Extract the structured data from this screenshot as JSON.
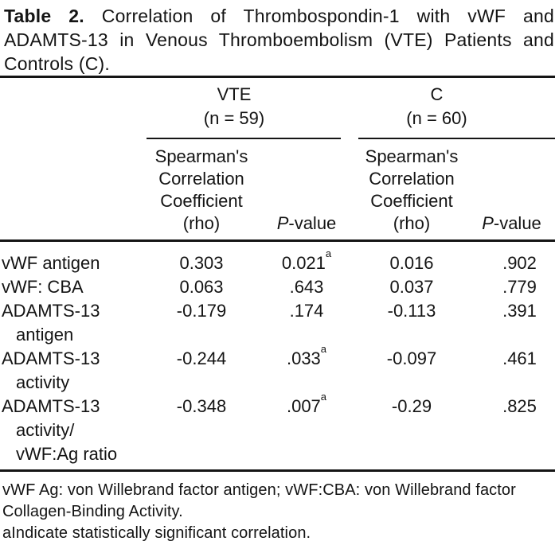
{
  "caption": {
    "label_bold": "Table 2.",
    "line1_rest": "Correlation of Thrombospondin-1 with vWF and",
    "line2": "ADAMTS-13 in Venous Thromboembolism (VTE) Patients and",
    "line3": "Controls (C)."
  },
  "table": {
    "groups": [
      {
        "name": "VTE",
        "n": "(n = 59)"
      },
      {
        "name": "C",
        "n": "(n = 60)"
      }
    ],
    "subheaders": {
      "rho_lines": [
        "Spearman's",
        "Correlation",
        "Coefficient",
        "(rho)"
      ],
      "p_italic": "P",
      "p_rest": "-value"
    },
    "rows": [
      {
        "label_lines": [
          "vWF antigen"
        ],
        "vte_rho": "0.303",
        "vte_p": "0.021",
        "vte_p_sup": "a",
        "c_rho": "0.016",
        "c_p": ".902",
        "c_p_sup": ""
      },
      {
        "label_lines": [
          "vWF: CBA"
        ],
        "vte_rho": "0.063",
        "vte_p": ".643",
        "vte_p_sup": "",
        "c_rho": "0.037",
        "c_p": ".779",
        "c_p_sup": ""
      },
      {
        "label_lines": [
          "ADAMTS-13",
          "antigen"
        ],
        "vte_rho": "-0.179",
        "vte_p": ".174",
        "vte_p_sup": "",
        "c_rho": "-0.113",
        "c_p": ".391",
        "c_p_sup": ""
      },
      {
        "label_lines": [
          "ADAMTS-13",
          "activity"
        ],
        "vte_rho": "-0.244",
        "vte_p": ".033",
        "vte_p_sup": "a",
        "c_rho": "-0.097",
        "c_p": ".461",
        "c_p_sup": ""
      },
      {
        "label_lines": [
          "ADAMTS-13",
          "activity/",
          "vWF:Ag ratio"
        ],
        "vte_rho": "-0.348",
        "vte_p": ".007",
        "vte_p_sup": "a",
        "c_rho": "-0.29",
        "c_p": ".825",
        "c_p_sup": ""
      }
    ]
  },
  "footnotes": {
    "line1": "vWF Ag: von Willebrand factor antigen; vWF:CBA: von Willebrand factor",
    "line2": "Collagen-Binding Activity.",
    "line3": "aIndicate statistically significant correlation."
  },
  "colors": {
    "background": "#ffffff",
    "text": "#141414",
    "rule": "#151515"
  }
}
